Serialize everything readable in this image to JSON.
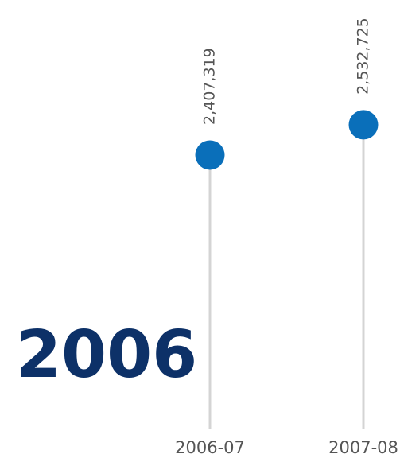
{
  "chart_data": {
    "type": "lollipop",
    "annotation": "2006",
    "categories": [
      "2006-07",
      "2007-08"
    ],
    "values": [
      2407319,
      2532725
    ],
    "value_labels": [
      "2,407,319",
      "2,532,725"
    ],
    "color": "#0a6fba",
    "ylim": [
      1270000,
      3050000
    ]
  }
}
